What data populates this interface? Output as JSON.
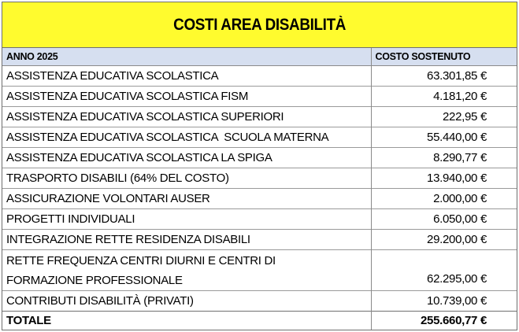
{
  "title": "COSTI AREA DISABILITÀ",
  "colors": {
    "title_background": "#fffb2e",
    "header_background": "#d6dff0",
    "border": "#6f6f6f"
  },
  "table": {
    "headers": {
      "label": "ANNO 2025",
      "amount": "COSTO SOSTENUTO"
    },
    "rows": [
      {
        "label": "ASSISTENZA EDUCATIVA SCOLASTICA",
        "amount": "63.301,85 €"
      },
      {
        "label": "ASSISTENZA EDUCATIVA SCOLASTICA FISM",
        "amount": "4.181,20 €"
      },
      {
        "label": "ASSISTENZA EDUCATIVA SCOLASTICA SUPERIORI",
        "amount": "222,95 €"
      },
      {
        "label": "ASSISTENZA EDUCATIVA SCOLASTICA  SCUOLA MATERNA",
        "amount": "55.440,00 €"
      },
      {
        "label": "ASSISTENZA EDUCATIVA SCOLASTICA LA SPIGA",
        "amount": "8.290,77 €"
      },
      {
        "label": "TRASPORTO DISABILI (64% DEL COSTO)",
        "amount": "13.940,00 €"
      },
      {
        "label": "ASSICURAZIONE VOLONTARI AUSER",
        "amount": "2.000,00 €"
      },
      {
        "label": "PROGETTI INDIVIDUALI",
        "amount": "6.050,00 €"
      },
      {
        "label": "INTEGRAZIONE RETTE RESIDENZA DISABILI",
        "amount": "29.200,00 €"
      },
      {
        "label": "RETTE FREQUENZA CENTRI DIURNI E CENTRI DI FORMAZIONE PROFESSIONALE",
        "amount": "62.295,00 €"
      },
      {
        "label": "CONTRIBUTI DISABILITÀ (PRIVATI)",
        "amount": "10.739,00 €"
      }
    ],
    "total": {
      "label": "TOTALE",
      "amount": "255.660,77 €"
    }
  }
}
